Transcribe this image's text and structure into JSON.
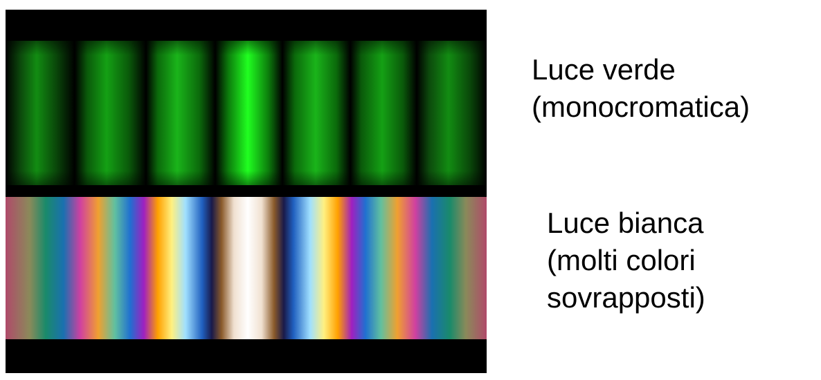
{
  "image": {
    "top_band_description_label": [
      "Luce verde",
      "(monocromatica)"
    ],
    "bottom_band_description_label": [
      "Luce bianca",
      "(molti colori",
      "sovrapposti)"
    ]
  }
}
